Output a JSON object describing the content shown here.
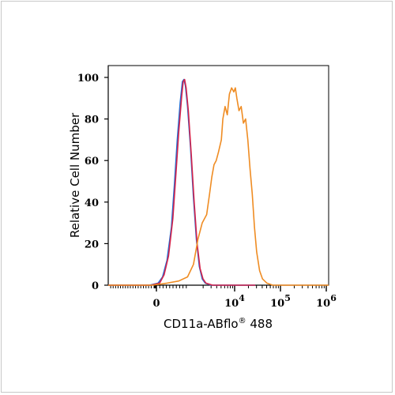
{
  "chart_data": {
    "type": "line",
    "title": "",
    "xlabel": "CD11a-ABflo",
    "xlabel_mark": "®",
    "xlabel_suffix": "488",
    "ylabel": "Relative Cell Number",
    "ylim": [
      0,
      100
    ],
    "y_ticks": [
      0,
      20,
      40,
      60,
      80,
      100
    ],
    "x_scale": "biexponential",
    "x_tick_labels": [
      {
        "value": 0,
        "base": "0",
        "exp": ""
      },
      {
        "value": 10000,
        "base": "10",
        "exp": "4"
      },
      {
        "value": 100000,
        "base": "10",
        "exp": "5"
      },
      {
        "value": 1000000,
        "base": "10",
        "exp": "6"
      }
    ],
    "series": [
      {
        "color": "#1f6fd6",
        "points": [
          [
            0.0,
            0
          ],
          [
            0.28,
            0
          ],
          [
            0.34,
            1
          ],
          [
            0.37,
            4
          ],
          [
            0.4,
            12
          ],
          [
            0.43,
            28
          ],
          [
            0.45,
            48
          ],
          [
            0.47,
            70
          ],
          [
            0.49,
            88
          ],
          [
            0.505,
            98
          ],
          [
            0.515,
            99
          ],
          [
            0.525,
            96
          ],
          [
            0.54,
            86
          ],
          [
            0.56,
            66
          ],
          [
            0.58,
            42
          ],
          [
            0.6,
            22
          ],
          [
            0.62,
            9
          ],
          [
            0.64,
            3
          ],
          [
            0.66,
            1
          ],
          [
            0.7,
            0
          ],
          [
            1.0,
            0
          ]
        ]
      },
      {
        "color": "#d6234a",
        "points": [
          [
            0.0,
            0
          ],
          [
            0.29,
            0
          ],
          [
            0.35,
            1
          ],
          [
            0.38,
            5
          ],
          [
            0.41,
            14
          ],
          [
            0.44,
            32
          ],
          [
            0.46,
            53
          ],
          [
            0.48,
            74
          ],
          [
            0.5,
            91
          ],
          [
            0.51,
            98
          ],
          [
            0.52,
            99
          ],
          [
            0.53,
            95
          ],
          [
            0.545,
            84
          ],
          [
            0.565,
            63
          ],
          [
            0.585,
            40
          ],
          [
            0.605,
            20
          ],
          [
            0.625,
            8
          ],
          [
            0.645,
            3
          ],
          [
            0.665,
            1
          ],
          [
            0.71,
            0
          ],
          [
            1.0,
            0
          ]
        ]
      },
      {
        "color": "#ef8c23",
        "points": [
          [
            0.0,
            0
          ],
          [
            0.3,
            0
          ],
          [
            0.4,
            1
          ],
          [
            0.48,
            2
          ],
          [
            0.54,
            4
          ],
          [
            0.58,
            10
          ],
          [
            0.61,
            22
          ],
          [
            0.64,
            30
          ],
          [
            0.67,
            34
          ],
          [
            0.69,
            44
          ],
          [
            0.705,
            52
          ],
          [
            0.72,
            58
          ],
          [
            0.735,
            60
          ],
          [
            0.75,
            64
          ],
          [
            0.77,
            70
          ],
          [
            0.78,
            80
          ],
          [
            0.795,
            86
          ],
          [
            0.81,
            82
          ],
          [
            0.825,
            92
          ],
          [
            0.84,
            95
          ],
          [
            0.855,
            93
          ],
          [
            0.865,
            95
          ],
          [
            0.875,
            90
          ],
          [
            0.89,
            84
          ],
          [
            0.905,
            86
          ],
          [
            0.92,
            78
          ],
          [
            0.935,
            80
          ],
          [
            0.95,
            70
          ],
          [
            0.965,
            56
          ],
          [
            0.98,
            44
          ],
          [
            0.995,
            28
          ],
          [
            1.01,
            16
          ],
          [
            1.03,
            7
          ],
          [
            1.05,
            3
          ],
          [
            1.08,
            1
          ],
          [
            1.12,
            0
          ],
          [
            1.5,
            0
          ]
        ]
      }
    ]
  }
}
